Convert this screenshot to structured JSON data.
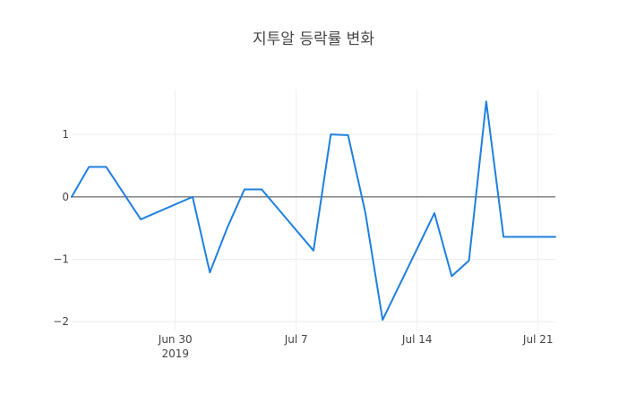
{
  "chart_data": {
    "type": "line",
    "title": "지투알 등락률 변화",
    "xlabel": "",
    "ylabel": "",
    "x_tick_labels": [
      {
        "date": "2019-06-30",
        "line1": "Jun 30",
        "line2": "2019"
      },
      {
        "date": "2019-07-07",
        "line1": "Jul 7",
        "line2": ""
      },
      {
        "date": "2019-07-14",
        "line1": "Jul 14",
        "line2": ""
      },
      {
        "date": "2019-07-21",
        "line1": "Jul 21",
        "line2": ""
      }
    ],
    "y_ticks": [
      -2,
      -1,
      0,
      1
    ],
    "y_tick_labels": [
      "−2",
      "−1",
      "0",
      "1"
    ],
    "xlim": [
      "2019-06-24",
      "2019-07-22"
    ],
    "ylim": [
      -2.14,
      1.72
    ],
    "grid": true,
    "zero_line": true,
    "series": [
      {
        "color": "#1f7fe0",
        "x": [
          "2019-06-24",
          "2019-06-25",
          "2019-06-26",
          "2019-06-28",
          "2019-07-01",
          "2019-07-02",
          "2019-07-03",
          "2019-07-04",
          "2019-07-05",
          "2019-07-08",
          "2019-07-09",
          "2019-07-10",
          "2019-07-11",
          "2019-07-12",
          "2019-07-15",
          "2019-07-16",
          "2019-07-17",
          "2019-07-18",
          "2019-07-19",
          "2019-07-22"
        ],
        "y": [
          0.0,
          0.48,
          0.48,
          -0.36,
          0.0,
          -1.21,
          -0.5,
          0.12,
          0.12,
          -0.86,
          1.0,
          0.99,
          -0.25,
          -1.97,
          -0.26,
          -1.27,
          -1.02,
          1.53,
          -0.64,
          -0.64
        ]
      }
    ]
  }
}
